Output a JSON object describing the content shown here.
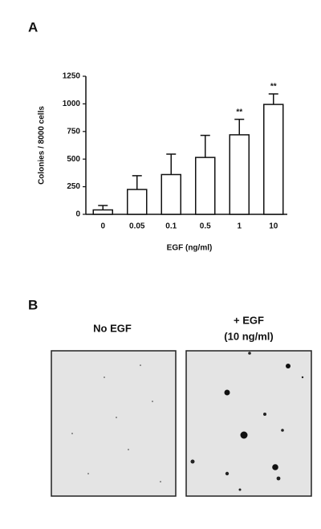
{
  "chart_data": {
    "type": "bar",
    "panel_label": "A",
    "categories": [
      "0",
      "0.05",
      "0.1",
      "0.5",
      "1",
      "10"
    ],
    "values": [
      40,
      225,
      360,
      515,
      720,
      995
    ],
    "errors": [
      40,
      125,
      185,
      200,
      140,
      95
    ],
    "value_annotations": [
      null,
      null,
      null,
      null,
      "**",
      "**"
    ],
    "color": "#ffffff",
    "x_label": "EGF (ng/ml)",
    "y_label": "Colonies / 8000 cells",
    "ylim": [
      0,
      1250
    ],
    "yticks": [
      0,
      250,
      500,
      750,
      1000,
      1250
    ],
    "grid": false
  },
  "panel_b": {
    "panel_label": "B",
    "images": [
      {
        "label_lines": [
          "No EGF"
        ]
      },
      {
        "label_lines": [
          "+ EGF",
          "(10 ng/ml)"
        ]
      }
    ]
  }
}
